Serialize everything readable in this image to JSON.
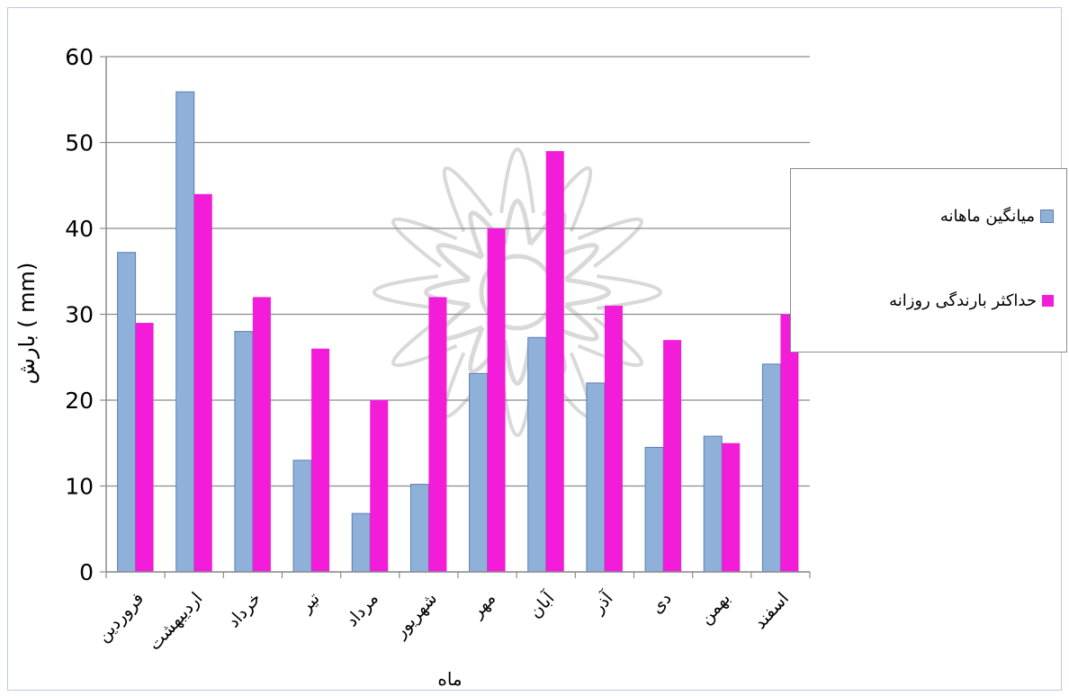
{
  "chart_data": {
    "type": "bar",
    "xlabel": "ماه",
    "ylabel": "بارش ( mm)",
    "ylim": [
      0,
      60
    ],
    "yticks": [
      0,
      10,
      20,
      30,
      40,
      50,
      60
    ],
    "grid": true,
    "legend_position": "right",
    "categories": [
      "فروردین",
      "اردیبهشت",
      "خرداد",
      "تیر",
      "مرداد",
      "شهریور",
      "مهر",
      "آبان",
      "آذر",
      "دی",
      "بهمن",
      "اسفند"
    ],
    "series": [
      {
        "name": "میانگین ماهانه",
        "color": "#8fb0d8",
        "values": [
          37.2,
          55.9,
          28.0,
          13.0,
          6.8,
          10.2,
          23.1,
          27.3,
          22.0,
          14.5,
          15.8,
          24.2
        ]
      },
      {
        "name": "حداکثر بارندگی روزانه",
        "color": "#f21cd9",
        "values": [
          29.0,
          44.0,
          32.0,
          26.0,
          20.0,
          32.0,
          40.0,
          49.0,
          31.0,
          27.0,
          15.0,
          30.0
        ]
      }
    ]
  }
}
